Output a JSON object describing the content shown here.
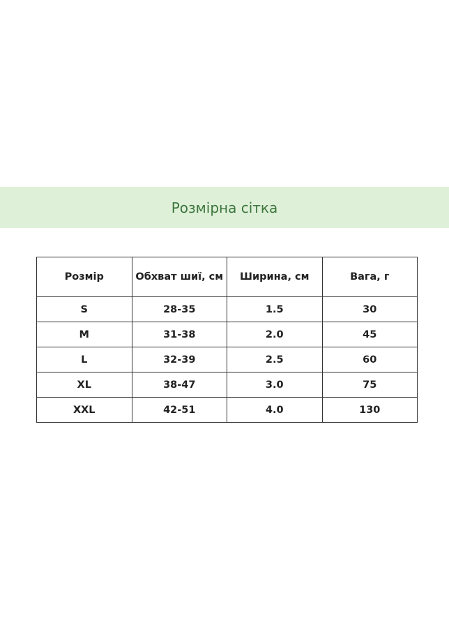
{
  "title": "Розмірна сітка",
  "table": {
    "headers": [
      "Розмір",
      "Обхват шиї, см",
      "Ширина, см",
      "Вага, г"
    ],
    "rows": [
      [
        "S",
        "28-35",
        "1.5",
        "30"
      ],
      [
        "M",
        "31-38",
        "2.0",
        "45"
      ],
      [
        "L",
        "32-39",
        "2.5",
        "60"
      ],
      [
        "XL",
        "38-47",
        "3.0",
        "75"
      ],
      [
        "XXL",
        "42-51",
        "4.0",
        "130"
      ]
    ]
  },
  "colors": {
    "banner_bg": "#dff0d8",
    "title": "#3c763d",
    "border": "#333333"
  }
}
